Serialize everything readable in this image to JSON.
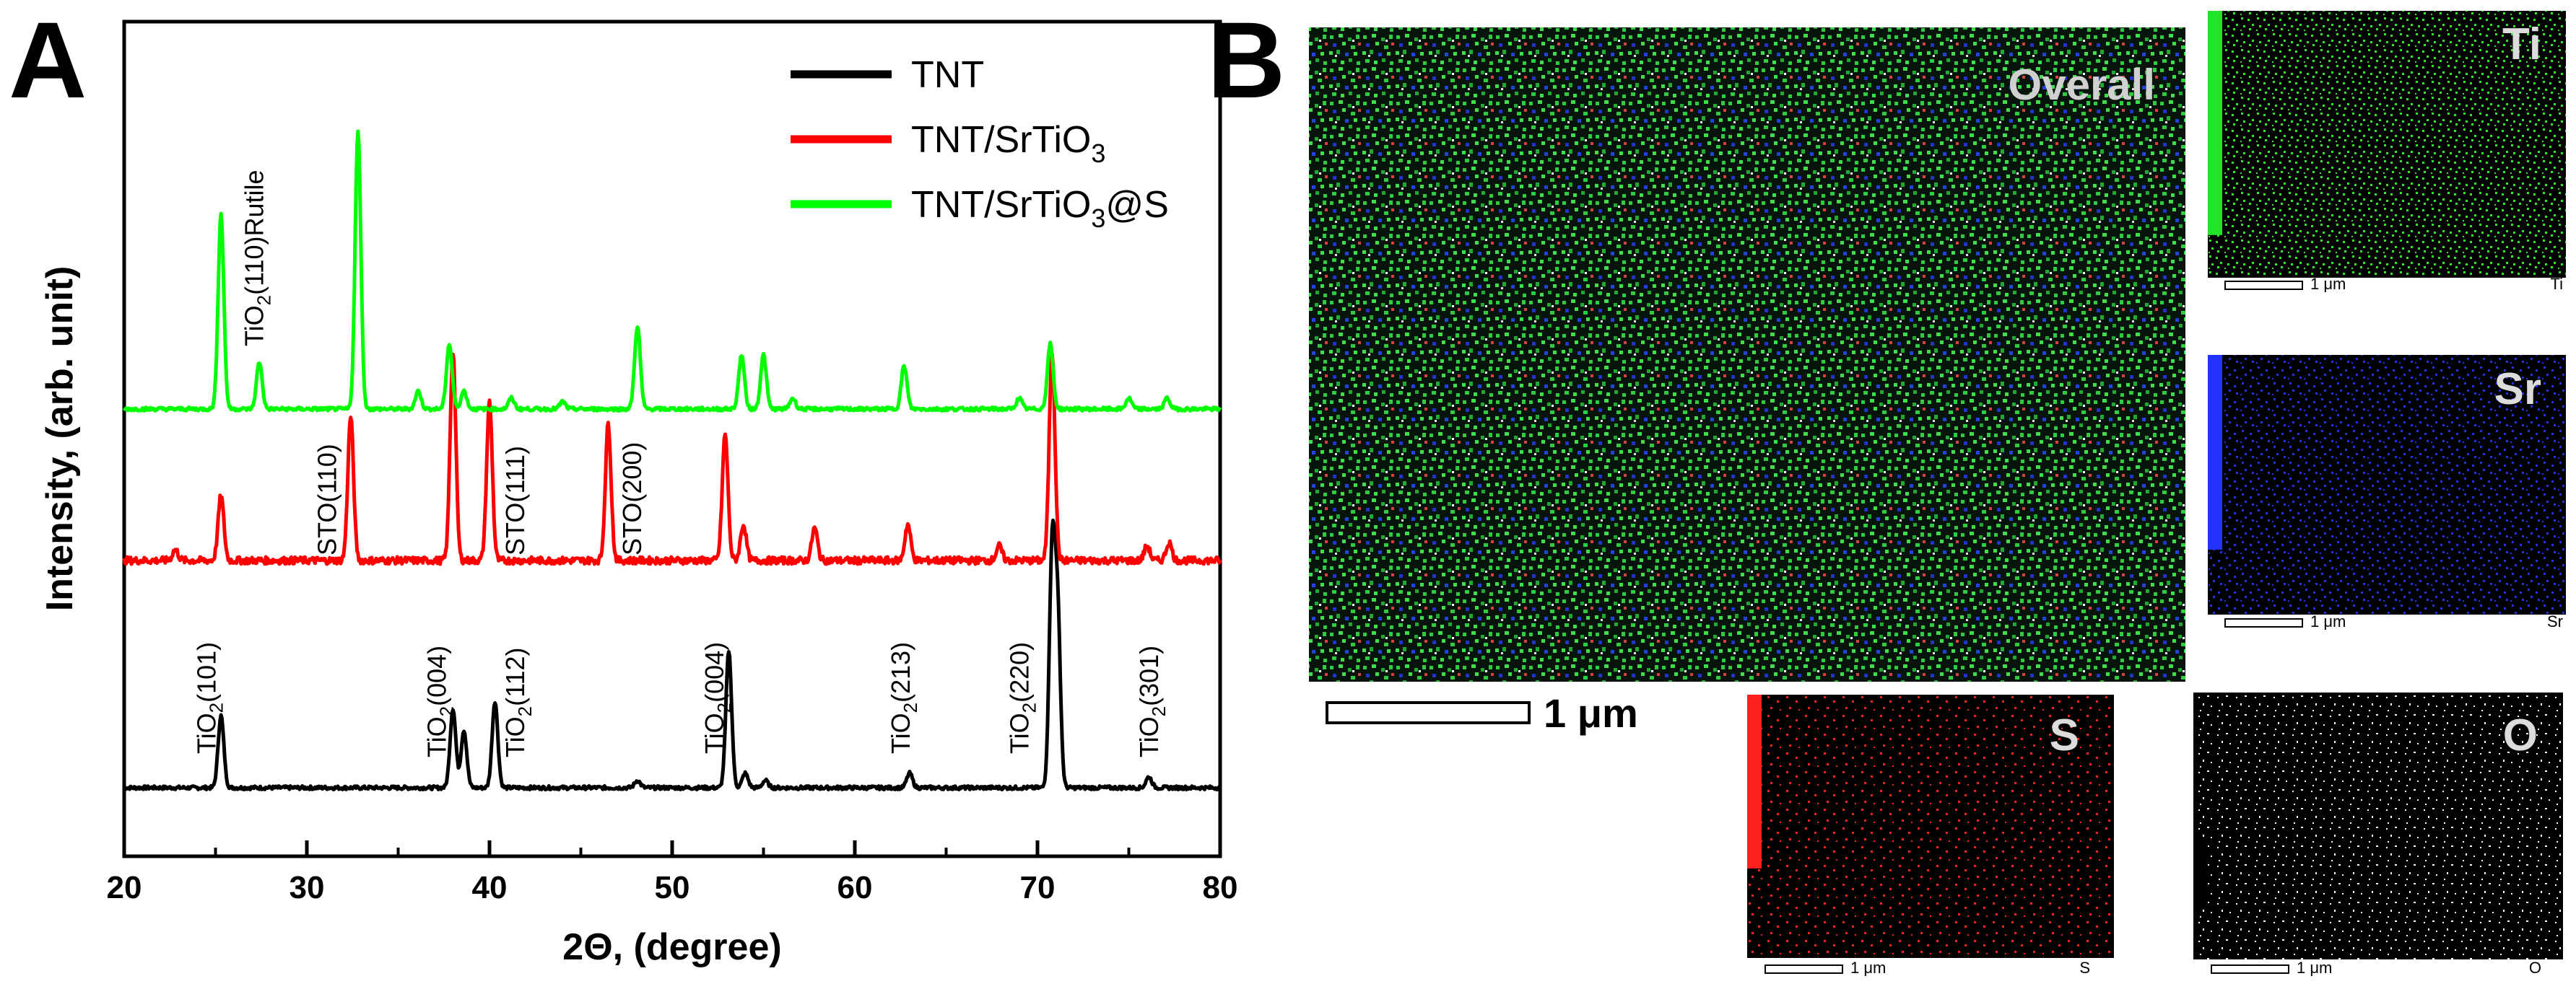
{
  "panel_a_letter": "A",
  "panel_b_letter": "B",
  "chart_data": {
    "type": "line",
    "title": "",
    "xlabel": "2Θ, (degree)",
    "ylabel": "Intensity, (arb. unit)",
    "xlim": [
      20,
      80
    ],
    "xticks": [
      20,
      30,
      40,
      50,
      60,
      70,
      80
    ],
    "series": [
      {
        "name": "TNT",
        "legend_main": "TNT",
        "legend_sub": "",
        "legend_tail": "",
        "color": "#000000",
        "offset": 0,
        "peaks": [
          [
            25.3,
            100
          ],
          [
            38.0,
            110
          ],
          [
            38.6,
            80
          ],
          [
            40.3,
            120
          ],
          [
            48.1,
            10
          ],
          [
            53.1,
            190
          ],
          [
            54.0,
            20
          ],
          [
            55.1,
            10
          ],
          [
            63.0,
            20
          ],
          [
            70.8,
            320
          ],
          [
            71.1,
            240
          ],
          [
            76.1,
            15
          ]
        ]
      },
      {
        "name": "TNT/SrTiO3",
        "legend_main": "TNT/SrTiO",
        "legend_sub": "3",
        "legend_tail": "",
        "color": "#ff0000",
        "offset": 315,
        "peaks": [
          [
            22.8,
            15
          ],
          [
            25.3,
            90
          ],
          [
            32.4,
            200
          ],
          [
            38.0,
            290
          ],
          [
            40.0,
            220
          ],
          [
            46.5,
            190
          ],
          [
            52.9,
            175
          ],
          [
            53.9,
            50
          ],
          [
            57.8,
            45
          ],
          [
            62.9,
            50
          ],
          [
            67.9,
            20
          ],
          [
            70.8,
            290
          ],
          [
            76.0,
            20
          ],
          [
            77.2,
            25
          ]
        ]
      },
      {
        "name": "TNT/SrTiO3@S",
        "legend_main": "TNT/SrTiO",
        "legend_sub": "3",
        "legend_tail": "@S",
        "color": "#00ff00",
        "offset": 525,
        "peaks": [
          [
            25.3,
            270
          ],
          [
            27.4,
            65
          ],
          [
            32.8,
            385
          ],
          [
            36.1,
            25
          ],
          [
            37.8,
            90
          ],
          [
            38.6,
            25
          ],
          [
            41.2,
            15
          ],
          [
            44.0,
            10
          ],
          [
            48.1,
            115
          ],
          [
            53.8,
            75
          ],
          [
            55.0,
            75
          ],
          [
            56.6,
            15
          ],
          [
            62.7,
            60
          ],
          [
            69.0,
            15
          ],
          [
            70.7,
            90
          ],
          [
            75.0,
            15
          ],
          [
            77.1,
            15
          ]
        ]
      }
    ],
    "annotations": [
      {
        "main": "TiO",
        "sub": "2",
        "tail": "(101)",
        "x": 25.0
      },
      {
        "main": "TiO",
        "sub": "2",
        "tail": "(004)",
        "x": 37.6
      },
      {
        "main": "TiO",
        "sub": "2",
        "tail": "(112)",
        "x": 41.9
      },
      {
        "main": "TiO",
        "sub": "2",
        "tail": "(004)",
        "x": 52.8
      },
      {
        "main": "TiO",
        "sub": "2",
        "tail": "(213)",
        "x": 63.0
      },
      {
        "main": "TiO",
        "sub": "2",
        "tail": "(220)",
        "x": 69.5
      },
      {
        "main": "TiO",
        "sub": "2",
        "tail": "(301)",
        "x": 76.6
      },
      {
        "main": "STO(110)",
        "sub": "",
        "tail": "",
        "x": 31.6
      },
      {
        "main": "STO(111)",
        "sub": "",
        "tail": "",
        "x": 41.9
      },
      {
        "main": "STO(200)",
        "sub": "",
        "tail": "",
        "x": 48.3
      },
      {
        "main": "TiO",
        "sub": "2",
        "tail": "(110)Rutile",
        "x": 27.6
      }
    ]
  },
  "eds_maps": {
    "overall_label": "Overall",
    "overall_scale": "1 μm",
    "elements": [
      {
        "symbol": "Ti",
        "scale": "1 μm",
        "footer": "Ti",
        "color": "#22e52a",
        "bar_fraction": 0.84
      },
      {
        "symbol": "Sr",
        "scale": "1 μm",
        "footer": "Sr",
        "color": "#2233ff",
        "bar_fraction": 0.75
      },
      {
        "symbol": "S",
        "scale": "1 μm",
        "footer": "S",
        "color": "#ff2020",
        "bar_fraction": 0.66
      },
      {
        "symbol": "O",
        "scale": "1 μm",
        "footer": "O",
        "color": "#ffffff",
        "bar_fraction": 0.25
      }
    ]
  }
}
